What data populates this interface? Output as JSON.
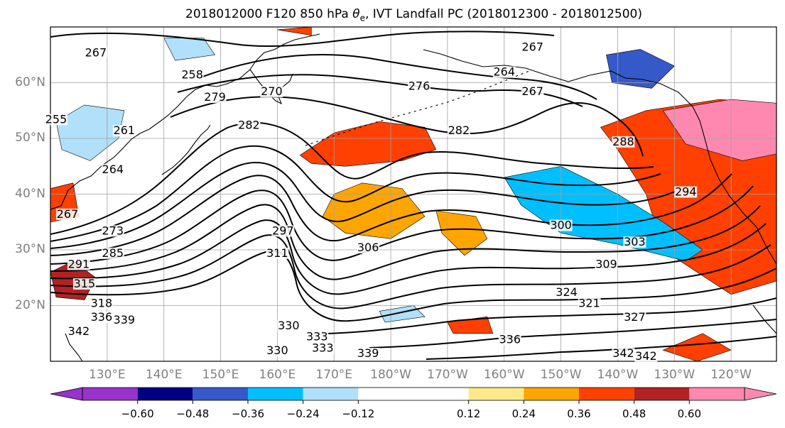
{
  "title_prefix": "2018012000 F120 850 hPa ",
  "title_symbol": "θ",
  "title_sub": "e",
  "title_suffix": ", IVT Landfall PC (2018012300 - 2018012500)",
  "map": {
    "projection": "PlateCarree",
    "lon_range": [
      120,
      -112
    ],
    "lat_range": [
      10,
      70
    ],
    "grid": true
  },
  "lat_labels": [
    "60°N",
    "50°N",
    "40°N",
    "30°N",
    "20°N"
  ],
  "lat_values": [
    60,
    50,
    40,
    30,
    20
  ],
  "lon_labels": [
    "130°E",
    "140°E",
    "150°E",
    "160°E",
    "170°E",
    "180°W",
    "170°W",
    "160°W",
    "150°W",
    "140°W",
    "130°W",
    "120°W"
  ],
  "lon_values": [
    130,
    140,
    150,
    160,
    170,
    180,
    190,
    200,
    210,
    220,
    230,
    240
  ],
  "colorbar": {
    "extend": "both",
    "levels": [
      -0.72,
      -0.6,
      -0.48,
      -0.36,
      -0.24,
      -0.12,
      0.12,
      0.24,
      0.36,
      0.48,
      0.6,
      0.72
    ],
    "colors": [
      "#9932cc",
      "#000080",
      "#3559c8",
      "#00bfff",
      "#b0e0fa",
      "#ffffff",
      "#ffe88a",
      "#ffa500",
      "#ff4000",
      "#b22222",
      "#ff88b0"
    ],
    "tick_labels": [
      "−0.60",
      "−0.48",
      "−0.36",
      "−0.24",
      "−0.12",
      "0.12",
      "0.24",
      "0.36",
      "0.48",
      "0.60"
    ],
    "tick_values": [
      -0.6,
      -0.48,
      -0.36,
      -0.24,
      -0.12,
      0.12,
      0.24,
      0.36,
      0.48,
      0.6
    ]
  },
  "contour_labels": [
    "267",
    "267",
    "258",
    "264",
    "267",
    "276",
    "270",
    "279",
    "282",
    "255",
    "261",
    "264",
    "282",
    "288",
    "294",
    "300",
    "303",
    "306",
    "309",
    "311",
    "297",
    "273",
    "267",
    "285",
    "291",
    "315",
    "318",
    "324",
    "321",
    "327",
    "336",
    "339",
    "330",
    "333",
    "333",
    "336",
    "342",
    "342",
    "330",
    "339",
    "342"
  ],
  "contour_label_pos": [
    [
      128,
      65
    ],
    [
      205,
      66
    ],
    [
      145,
      61
    ],
    [
      200,
      61.5
    ],
    [
      205,
      58
    ],
    [
      185,
      59
    ],
    [
      159,
      58
    ],
    [
      149,
      57
    ],
    [
      155,
      52
    ],
    [
      121,
      53
    ],
    [
      133,
      51
    ],
    [
      131,
      44
    ],
    [
      192,
      51
    ],
    [
      221,
      49
    ],
    [
      232,
      40
    ],
    [
      210,
      34
    ],
    [
      223,
      31
    ],
    [
      176,
      30
    ],
    [
      218,
      27
    ],
    [
      160,
      29
    ],
    [
      161,
      33
    ],
    [
      131,
      33
    ],
    [
      123,
      36
    ],
    [
      131,
      29
    ],
    [
      125,
      27
    ],
    [
      126,
      23.5
    ],
    [
      129,
      20
    ],
    [
      211,
      22
    ],
    [
      215,
      20
    ],
    [
      223,
      17.5
    ],
    [
      129,
      17.5
    ],
    [
      133,
      17
    ],
    [
      162,
      16
    ],
    [
      167,
      14
    ],
    [
      168,
      12
    ],
    [
      201,
      13.5
    ],
    [
      125,
      15
    ],
    [
      221,
      11
    ],
    [
      160,
      11.5
    ],
    [
      176,
      11
    ],
    [
      225,
      10.5
    ]
  ],
  "fill_patches": [
    {
      "lonlat": [
        [
          164,
          47
        ],
        [
          170,
          51
        ],
        [
          178,
          53
        ],
        [
          186,
          52
        ],
        [
          188,
          48
        ],
        [
          182,
          46
        ],
        [
          172,
          45
        ],
        [
          166,
          45.5
        ]
      ],
      "level": 0.36
    },
    {
      "lonlat": [
        [
          170,
          40
        ],
        [
          175,
          42
        ],
        [
          182,
          41
        ],
        [
          186,
          36
        ],
        [
          180,
          32
        ],
        [
          172,
          33
        ],
        [
          168,
          36
        ]
      ],
      "level": 0.24
    },
    {
      "lonlat": [
        [
          188,
          37
        ],
        [
          195,
          36
        ],
        [
          197,
          32
        ],
        [
          193,
          29
        ],
        [
          189,
          33
        ]
      ],
      "level": 0.24
    },
    {
      "lonlat": [
        [
          217,
          52
        ],
        [
          225,
          55
        ],
        [
          238,
          57
        ],
        [
          250,
          56
        ],
        [
          255,
          40
        ],
        [
          250,
          25
        ],
        [
          240,
          22
        ],
        [
          228,
          30
        ],
        [
          225,
          40
        ],
        [
          220,
          48
        ]
      ],
      "level": 0.36
    },
    {
      "lonlat": [
        [
          228,
          55
        ],
        [
          240,
          57
        ],
        [
          252,
          56
        ],
        [
          252,
          48
        ],
        [
          242,
          46
        ],
        [
          232,
          49
        ]
      ],
      "level": 0.6
    },
    {
      "lonlat": [
        [
          120,
          26
        ],
        [
          124,
          28
        ],
        [
          128,
          25
        ],
        [
          126,
          21
        ],
        [
          121,
          21.5
        ]
      ],
      "level": 0.48
    },
    {
      "lonlat": [
        [
          120,
          41
        ],
        [
          124,
          42
        ],
        [
          125,
          36
        ],
        [
          120,
          35
        ]
      ],
      "level": 0.36
    },
    {
      "lonlat": [
        [
          200,
          43
        ],
        [
          210,
          45
        ],
        [
          220,
          40
        ],
        [
          228,
          35
        ],
        [
          235,
          30
        ],
        [
          232,
          28
        ],
        [
          220,
          31
        ],
        [
          210,
          33
        ],
        [
          203,
          38
        ]
      ],
      "level": -0.36
    },
    {
      "lonlat": [
        [
          121,
          53
        ],
        [
          126,
          56
        ],
        [
          133,
          55
        ],
        [
          132,
          50
        ],
        [
          127,
          46
        ],
        [
          122,
          48
        ]
      ],
      "level": -0.24
    },
    {
      "lonlat": [
        [
          218,
          65
        ],
        [
          224,
          66
        ],
        [
          230,
          63
        ],
        [
          226,
          59
        ],
        [
          219,
          60
        ]
      ],
      "level": -0.48
    },
    {
      "lonlat": [
        [
          140,
          68
        ],
        [
          147,
          68
        ],
        [
          149,
          65
        ],
        [
          142,
          64
        ]
      ],
      "level": -0.24
    },
    {
      "lonlat": [
        [
          178,
          19
        ],
        [
          184,
          20
        ],
        [
          186,
          18
        ],
        [
          179,
          17
        ]
      ],
      "level": -0.24
    },
    {
      "lonlat": [
        [
          190,
          17
        ],
        [
          197,
          18
        ],
        [
          198,
          15
        ],
        [
          191,
          15
        ]
      ],
      "level": 0.36
    },
    {
      "lonlat": [
        [
          228,
          12
        ],
        [
          235,
          15
        ],
        [
          240,
          12
        ],
        [
          234,
          10
        ]
      ],
      "level": 0.36
    },
    {
      "lonlat": [
        [
          160,
          69.5
        ],
        [
          166,
          70
        ],
        [
          166,
          68.5
        ]
      ],
      "level": 0.36
    }
  ],
  "icons": {
    "colorbar_arrow_left": "triangle-left",
    "colorbar_arrow_right": "triangle-right"
  }
}
